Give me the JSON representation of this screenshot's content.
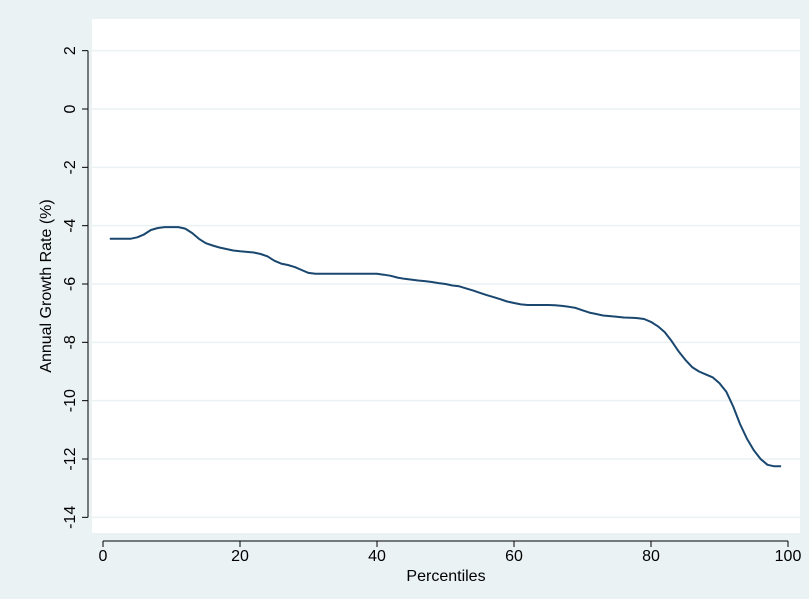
{
  "colors": {
    "outer_background": "#eaf2f3",
    "plot_background": "#ffffff",
    "gridline": "#eaf2f3",
    "line": "#1a476f"
  },
  "chart_data": {
    "type": "line",
    "title": "",
    "xlabel": "Percentiles",
    "ylabel": "Annual Growth Rate (%)",
    "xlim": [
      0,
      100
    ],
    "ylim": [
      -14,
      2
    ],
    "xticks": [
      0,
      20,
      40,
      60,
      80,
      100
    ],
    "yticks": [
      2,
      0,
      -2,
      -4,
      -6,
      -8,
      -10,
      -12,
      -14
    ],
    "grid": true,
    "legend": "none",
    "series": [
      {
        "x": [
          1,
          2,
          3,
          4,
          5,
          6,
          7,
          8,
          9,
          10,
          11,
          12,
          13,
          14,
          15,
          16,
          17,
          18,
          19,
          20,
          21,
          22,
          23,
          24,
          25,
          26,
          27,
          28,
          29,
          30,
          31,
          32,
          33,
          34,
          35,
          36,
          37,
          38,
          39,
          40,
          41,
          42,
          43,
          44,
          45,
          46,
          47,
          48,
          49,
          50,
          51,
          52,
          53,
          54,
          55,
          56,
          57,
          58,
          59,
          60,
          61,
          62,
          63,
          64,
          65,
          66,
          67,
          68,
          69,
          70,
          71,
          72,
          73,
          74,
          75,
          76,
          77,
          78,
          79,
          80,
          81,
          82,
          83,
          84,
          85,
          86,
          87,
          88,
          89,
          90,
          91,
          92,
          93,
          94,
          95,
          96,
          97,
          98,
          99
        ],
        "y": [
          -4.45,
          -4.45,
          -4.45,
          -4.45,
          -4.4,
          -4.3,
          -4.15,
          -4.08,
          -4.05,
          -4.05,
          -4.05,
          -4.1,
          -4.25,
          -4.45,
          -4.6,
          -4.68,
          -4.75,
          -4.8,
          -4.85,
          -4.88,
          -4.9,
          -4.92,
          -4.97,
          -5.05,
          -5.2,
          -5.3,
          -5.35,
          -5.42,
          -5.52,
          -5.62,
          -5.65,
          -5.65,
          -5.65,
          -5.65,
          -5.65,
          -5.65,
          -5.65,
          -5.65,
          -5.65,
          -5.65,
          -5.68,
          -5.72,
          -5.78,
          -5.82,
          -5.85,
          -5.88,
          -5.9,
          -5.93,
          -5.97,
          -6.0,
          -6.05,
          -6.08,
          -6.15,
          -6.22,
          -6.3,
          -6.38,
          -6.45,
          -6.52,
          -6.6,
          -6.65,
          -6.7,
          -6.72,
          -6.72,
          -6.72,
          -6.72,
          -6.73,
          -6.75,
          -6.78,
          -6.82,
          -6.9,
          -6.98,
          -7.03,
          -7.08,
          -7.1,
          -7.12,
          -7.15,
          -7.16,
          -7.17,
          -7.2,
          -7.3,
          -7.45,
          -7.65,
          -7.95,
          -8.3,
          -8.6,
          -8.85,
          -9.0,
          -9.1,
          -9.2,
          -9.4,
          -9.7,
          -10.2,
          -10.8,
          -11.3,
          -11.7,
          -12.0,
          -12.2,
          -12.25,
          -12.25
        ]
      }
    ]
  }
}
